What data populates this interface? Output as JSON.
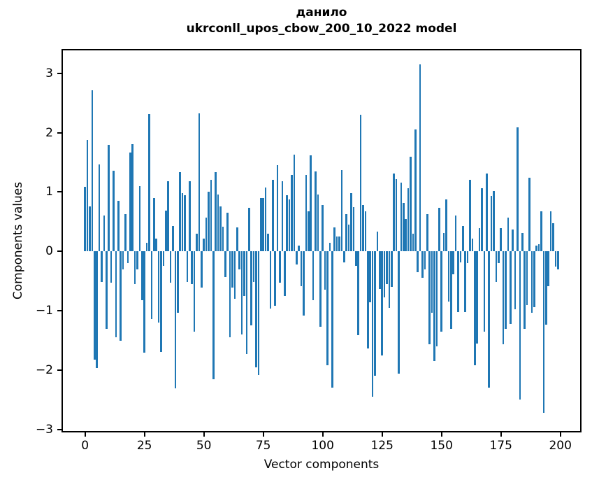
{
  "chart_data": {
    "type": "bar",
    "title": "данило",
    "subtitle": "ukrconll_upos_cbow_200_10_2022 model",
    "xlabel": "Vector components",
    "ylabel": "Components values",
    "x_ticks": [
      0,
      25,
      50,
      75,
      100,
      125,
      150,
      175,
      200
    ],
    "y_ticks": [
      3,
      2,
      1,
      0,
      -1,
      -2,
      -3
    ],
    "xlim": [
      -10.4,
      209.4
    ],
    "ylim": [
      -3.05,
      3.41
    ],
    "bar_color": "#1f77b4",
    "n_components": 200,
    "grid": false,
    "legend": "none",
    "values": [
      1.09,
      1.88,
      0.76,
      2.72,
      -1.82,
      -1.97,
      1.46,
      -0.52,
      0.61,
      -1.3,
      1.8,
      -0.53,
      1.36,
      -1.45,
      0.85,
      -1.5,
      -0.3,
      0.63,
      -0.2,
      1.67,
      1.81,
      -0.55,
      -0.3,
      1.1,
      -0.82,
      -1.71,
      0.15,
      2.31,
      -1.14,
      0.9,
      0.22,
      -1.2,
      -1.69,
      -0.25,
      0.69,
      1.18,
      -0.53,
      0.43,
      -2.31,
      -1.04,
      1.33,
      0.98,
      0.95,
      -0.51,
      1.18,
      -0.55,
      -1.35,
      0.3,
      2.33,
      -0.61,
      0.22,
      0.57,
      1.0,
      1.2,
      -2.15,
      1.33,
      0.96,
      0.76,
      0.41,
      -0.43,
      0.65,
      -1.45,
      -0.61,
      -0.8,
      0.4,
      -0.3,
      -1.4,
      -0.75,
      -1.73,
      0.73,
      -1.25,
      -0.52,
      -1.95,
      -2.08,
      0.9,
      0.9,
      1.08,
      0.3,
      -0.96,
      1.2,
      -0.92,
      1.45,
      -0.53,
      1.18,
      -0.75,
      0.95,
      0.88,
      1.29,
      1.63,
      -0.22,
      0.1,
      -0.59,
      -1.08,
      1.29,
      0.67,
      1.62,
      -0.82,
      1.35,
      0.96,
      -1.27,
      0.78,
      -0.65,
      -1.92,
      0.15,
      -2.3,
      0.4,
      0.25,
      0.25,
      1.37,
      -0.18,
      0.63,
      0.45,
      0.98,
      0.75,
      -0.24,
      -1.41,
      2.3,
      0.78,
      0.67,
      -1.63,
      -0.86,
      -2.45,
      -2.1,
      0.33,
      -0.63,
      -1.75,
      -0.78,
      -0.55,
      -0.95,
      -0.6,
      1.31,
      1.22,
      -2.06,
      1.16,
      0.82,
      0.55,
      1.06,
      1.6,
      0.3,
      2.05,
      -0.35,
      3.15,
      -0.45,
      -0.3,
      0.63,
      -1.57,
      -1.04,
      -1.85,
      -1.6,
      0.73,
      -1.35,
      0.31,
      0.88,
      -0.85,
      -1.3,
      -0.39,
      0.61,
      -1.02,
      -0.18,
      0.43,
      -1.02,
      -0.2,
      1.21,
      0.22,
      -1.92,
      -1.55,
      0.39,
      1.06,
      -1.35,
      1.31,
      -2.3,
      0.94,
      1.02,
      -0.51,
      -0.2,
      0.39,
      -1.57,
      -1.3,
      0.57,
      -1.22,
      0.37,
      -0.98,
      2.09,
      -2.5,
      0.31,
      -1.3,
      -0.9,
      1.24,
      -1.04,
      -0.94,
      0.1,
      0.12,
      0.67,
      -2.72,
      -1.24,
      -0.59,
      0.68,
      0.48,
      -0.26,
      -0.3
    ]
  }
}
